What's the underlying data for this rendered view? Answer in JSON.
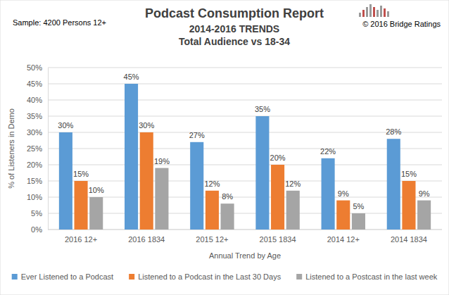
{
  "chart_data": {
    "type": "bar",
    "title": "Podcast Consumption Report",
    "subtitle": [
      "2014-2016 TRENDS",
      "Total Audience vs 18-34"
    ],
    "annotations": [
      "Sample: 4200 Persons 12+",
      "© 2016 Bridge Ratings"
    ],
    "x_label": "Annual Trend by Age",
    "y_label": "% of Listeners in Demo",
    "categories": [
      "2016 12+",
      "2016 1834",
      "2015 12+",
      "2015 1834",
      "2014 12+",
      "2014 1834"
    ],
    "series": [
      {
        "name": "Ever Listened to a Podcast",
        "color": "#5b9bd5",
        "values": [
          30,
          45,
          27,
          35,
          22,
          28
        ],
        "value_labels": [
          "30%",
          "45%",
          "27%",
          "35%",
          "22%",
          "28%"
        ]
      },
      {
        "name": "Listened to a Podcast in the Last 30 Days",
        "color": "#ed7d31",
        "values": [
          15,
          30,
          12,
          20,
          9,
          15
        ],
        "value_labels": [
          "15%",
          "30%",
          "12%",
          "20%",
          "9%",
          "15%"
        ]
      },
      {
        "name": "Listened to a Postcast in the last week",
        "color": "#a5a5a5",
        "values": [
          10,
          19,
          8,
          12,
          5,
          9
        ],
        "value_labels": [
          "10%",
          "19%",
          "8%",
          "12%",
          "5%",
          "9%"
        ]
      }
    ],
    "ylim": [
      0,
      50
    ],
    "yticks": [
      {
        "value": 0,
        "label": "0%"
      },
      {
        "value": 5,
        "label": "5%"
      },
      {
        "value": 10,
        "label": "10%"
      },
      {
        "value": 15,
        "label": "15%"
      },
      {
        "value": 20,
        "label": "20%"
      },
      {
        "value": 25,
        "label": "25%"
      },
      {
        "value": 30,
        "label": "30%"
      },
      {
        "value": 35,
        "label": "35%"
      },
      {
        "value": 40,
        "label": "40%"
      },
      {
        "value": 45,
        "label": "45%"
      },
      {
        "value": 50,
        "label": "50%"
      }
    ],
    "grid": true,
    "legend": "bottom",
    "data_labels": true
  }
}
